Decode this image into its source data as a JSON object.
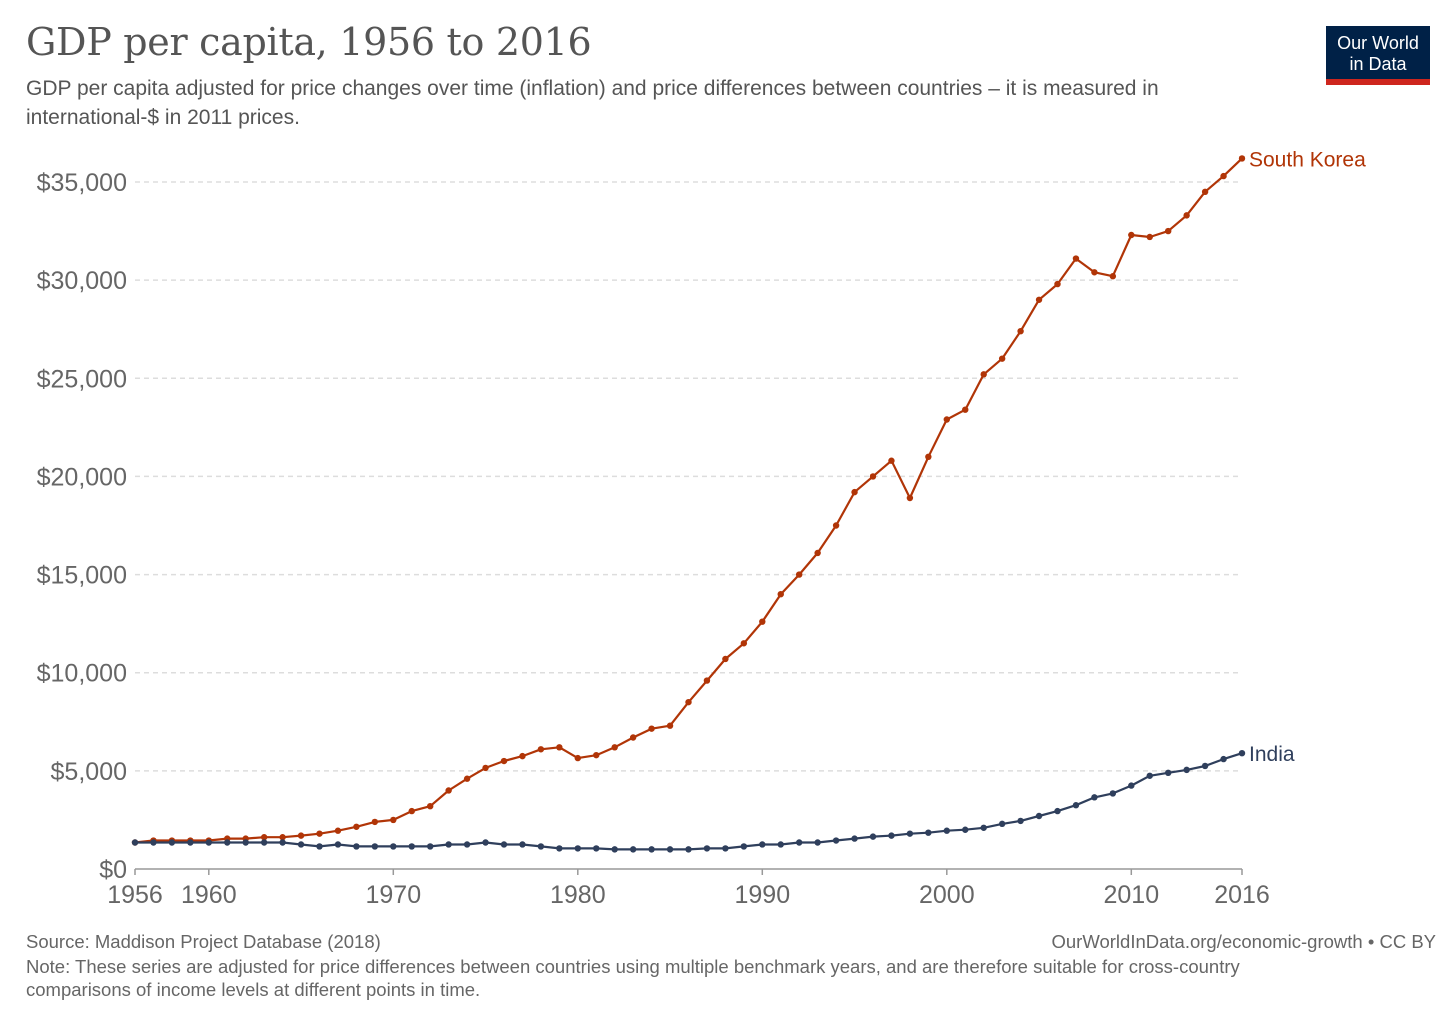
{
  "header": {
    "title": "GDP per capita, 1956 to 2016",
    "subtitle": "GDP per capita adjusted for price changes over time (inflation) and price differences between countries – it is measured in international-$ in 2011 prices."
  },
  "logo": {
    "line1": "Our World",
    "line2": "in Data",
    "bg_color": "#002147",
    "accent_color": "#ce261e"
  },
  "footer": {
    "source": "Source: Maddison Project Database (2018)",
    "url": "OurWorldInData.org/economic-growth • CC BY",
    "note": "Note: These series are adjusted for price differences between countries using multiple benchmark years, and are therefore suitable for cross-country comparisons of income levels at different points in time."
  },
  "chart_data": {
    "type": "line",
    "title": "GDP per capita, 1956 to 2016",
    "xlim": [
      1956,
      2016
    ],
    "ylim": [
      0,
      35000
    ],
    "x_ticks": [
      1956,
      1960,
      1970,
      1980,
      1990,
      2000,
      2010,
      2016
    ],
    "x_tick_labels": [
      "1956",
      "1960",
      "1970",
      "1980",
      "1990",
      "2000",
      "2010",
      "2016"
    ],
    "y_ticks": [
      0,
      5000,
      10000,
      15000,
      20000,
      25000,
      30000,
      35000
    ],
    "y_tick_labels": [
      "$0",
      "$5,000",
      "$10,000",
      "$15,000",
      "$20,000",
      "$25,000",
      "$30,000",
      "$35,000"
    ],
    "grid": "horizontal dashed",
    "legend": "inline labels at line ends",
    "x": [
      1956,
      1957,
      1958,
      1959,
      1960,
      1961,
      1962,
      1963,
      1964,
      1965,
      1966,
      1967,
      1968,
      1969,
      1970,
      1971,
      1972,
      1973,
      1974,
      1975,
      1976,
      1977,
      1978,
      1979,
      1980,
      1981,
      1982,
      1983,
      1984,
      1985,
      1986,
      1987,
      1988,
      1989,
      1990,
      1991,
      1992,
      1993,
      1994,
      1995,
      1996,
      1997,
      1998,
      1999,
      2000,
      2001,
      2002,
      2003,
      2004,
      2005,
      2006,
      2007,
      2008,
      2009,
      2010,
      2011,
      2012,
      2013,
      2014,
      2015,
      2016
    ],
    "series": [
      {
        "name": "South Korea",
        "color": "#b13507",
        "values": [
          1350,
          1450,
          1450,
          1450,
          1450,
          1550,
          1550,
          1620,
          1620,
          1700,
          1800,
          1950,
          2150,
          2400,
          2500,
          2950,
          3200,
          4000,
          4600,
          5150,
          5500,
          5750,
          6100,
          6200,
          5650,
          5800,
          6200,
          6700,
          7150,
          7300,
          8500,
          9600,
          10700,
          11500,
          12600,
          14000,
          15000,
          16100,
          17500,
          19200,
          20000,
          20800,
          18900,
          21000,
          22900,
          23400,
          25200,
          26000,
          27400,
          29000,
          29800,
          31100,
          30400,
          30200,
          32300,
          32200,
          32500,
          33300,
          34500,
          35300,
          36200
        ]
      },
      {
        "name": "India",
        "color": "#2f3f5c",
        "values": [
          1350,
          1350,
          1350,
          1350,
          1350,
          1350,
          1350,
          1350,
          1350,
          1250,
          1150,
          1250,
          1150,
          1150,
          1150,
          1150,
          1150,
          1250,
          1250,
          1350,
          1250,
          1250,
          1150,
          1050,
          1050,
          1050,
          1000,
          1000,
          1000,
          1000,
          1000,
          1050,
          1050,
          1150,
          1250,
          1250,
          1350,
          1350,
          1450,
          1550,
          1650,
          1700,
          1800,
          1850,
          1950,
          2000,
          2100,
          2300,
          2450,
          2700,
          2950,
          3250,
          3650,
          3850,
          4250,
          4750,
          4900,
          5050,
          5250,
          5600,
          5900
        ]
      }
    ]
  }
}
